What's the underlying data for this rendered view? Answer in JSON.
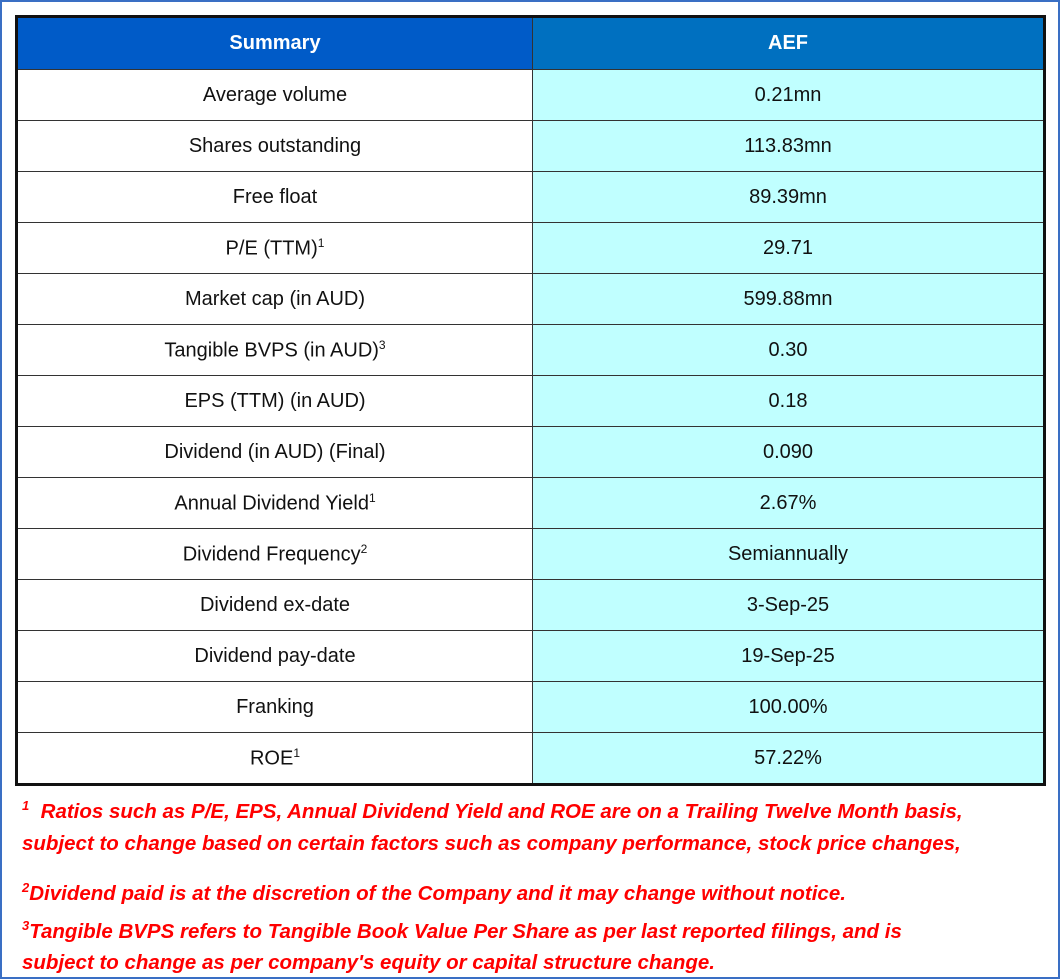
{
  "table": {
    "headers": [
      "Summary",
      "AEF"
    ],
    "rows": [
      {
        "label": "Average volume",
        "sup": "",
        "value": "0.21mn"
      },
      {
        "label": "Shares outstanding",
        "sup": "",
        "value": "113.83mn"
      },
      {
        "label": "Free float",
        "sup": "",
        "value": "89.39mn"
      },
      {
        "label": "P/E (TTM)",
        "sup": "1",
        "value": "29.71"
      },
      {
        "label": "Market cap (in AUD)",
        "sup": "",
        "value": "599.88mn"
      },
      {
        "label": "Tangible BVPS (in AUD)",
        "sup": "3",
        "value": "0.30"
      },
      {
        "label": "EPS (TTM) (in AUD)",
        "sup": "",
        "value": "0.18"
      },
      {
        "label": "Dividend (in AUD) (Final)",
        "sup": "",
        "value": "0.090"
      },
      {
        "label": "Annual Dividend Yield",
        "sup": "1",
        "value": "2.67%"
      },
      {
        "label": "Dividend Frequency",
        "sup": "2",
        "value": "Semiannually"
      },
      {
        "label": "Dividend ex-date",
        "sup": "",
        "value": "3-Sep-25"
      },
      {
        "label": "Dividend pay-date",
        "sup": "",
        "value": "19-Sep-25"
      },
      {
        "label": "Franking",
        "sup": "",
        "value": "100.00%"
      },
      {
        "label": "ROE",
        "sup": "1",
        "value": "57.22%"
      }
    ]
  },
  "footnotes": [
    {
      "mark": "1",
      "lines": [
        "Ratios such as P/E, EPS, Annual Dividend Yield and ROE are on a Trailing Twelve Month basis,",
        "subject to change based on certain factors such as company performance, stock price changes,"
      ]
    },
    {
      "mark": "2",
      "lines": [
        "Dividend paid is at the discretion of the Company and it may change without notice."
      ]
    },
    {
      "mark": "3",
      "lines": [
        "Tangible BVPS refers to Tangible Book Value Per Share as per last reported filings, and is",
        "subject to change as per company's equity or capital structure change."
      ]
    }
  ],
  "colors": {
    "header_left": "#005bc8",
    "header_right": "#0070c0",
    "value_cell": "#c0ffff",
    "footnote_text": "#ff0000",
    "frame": "#3a6fc4"
  }
}
